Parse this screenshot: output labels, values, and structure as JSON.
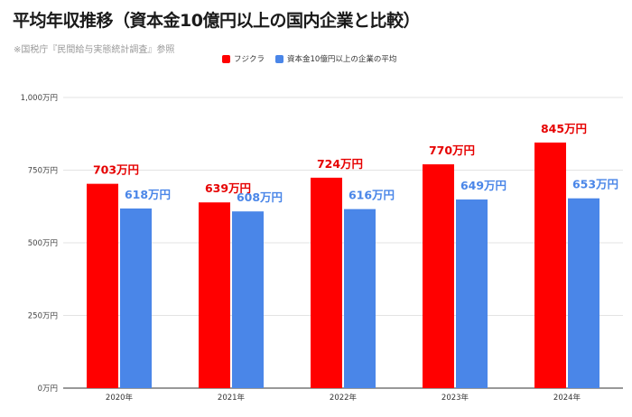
{
  "title": "平均年収推移（資本金10億円以上の国内企業と比較）",
  "source": "※国税庁『民間給与実態統計調査』参照",
  "colors": {
    "fujikura": "#ff0000",
    "average": "#4a86e8",
    "fujikura_label": "#e60000",
    "average_label": "#4a86e8"
  },
  "chart_data": {
    "type": "bar",
    "categories": [
      "2020年",
      "2021年",
      "2022年",
      "2023年",
      "2024年"
    ],
    "series": [
      {
        "name": "フジクラ",
        "values": [
          703,
          639,
          724,
          770,
          845
        ],
        "labels": [
          "703万円",
          "639万円",
          "724万円",
          "770万円",
          "845万円"
        ]
      },
      {
        "name": "資本金10億円以上の企業の平均",
        "values": [
          618,
          608,
          616,
          649,
          653
        ],
        "labels": [
          "618万円",
          "608万円",
          "616万円",
          "649万円",
          "653万円"
        ]
      }
    ],
    "ylim": [
      0,
      1000
    ],
    "yticks": [
      0,
      250,
      500,
      750,
      1000
    ],
    "ytick_labels": [
      "0万円",
      "250万円",
      "500万円",
      "750万円",
      "1,000万円"
    ],
    "grid": true,
    "legend_position": "top"
  }
}
